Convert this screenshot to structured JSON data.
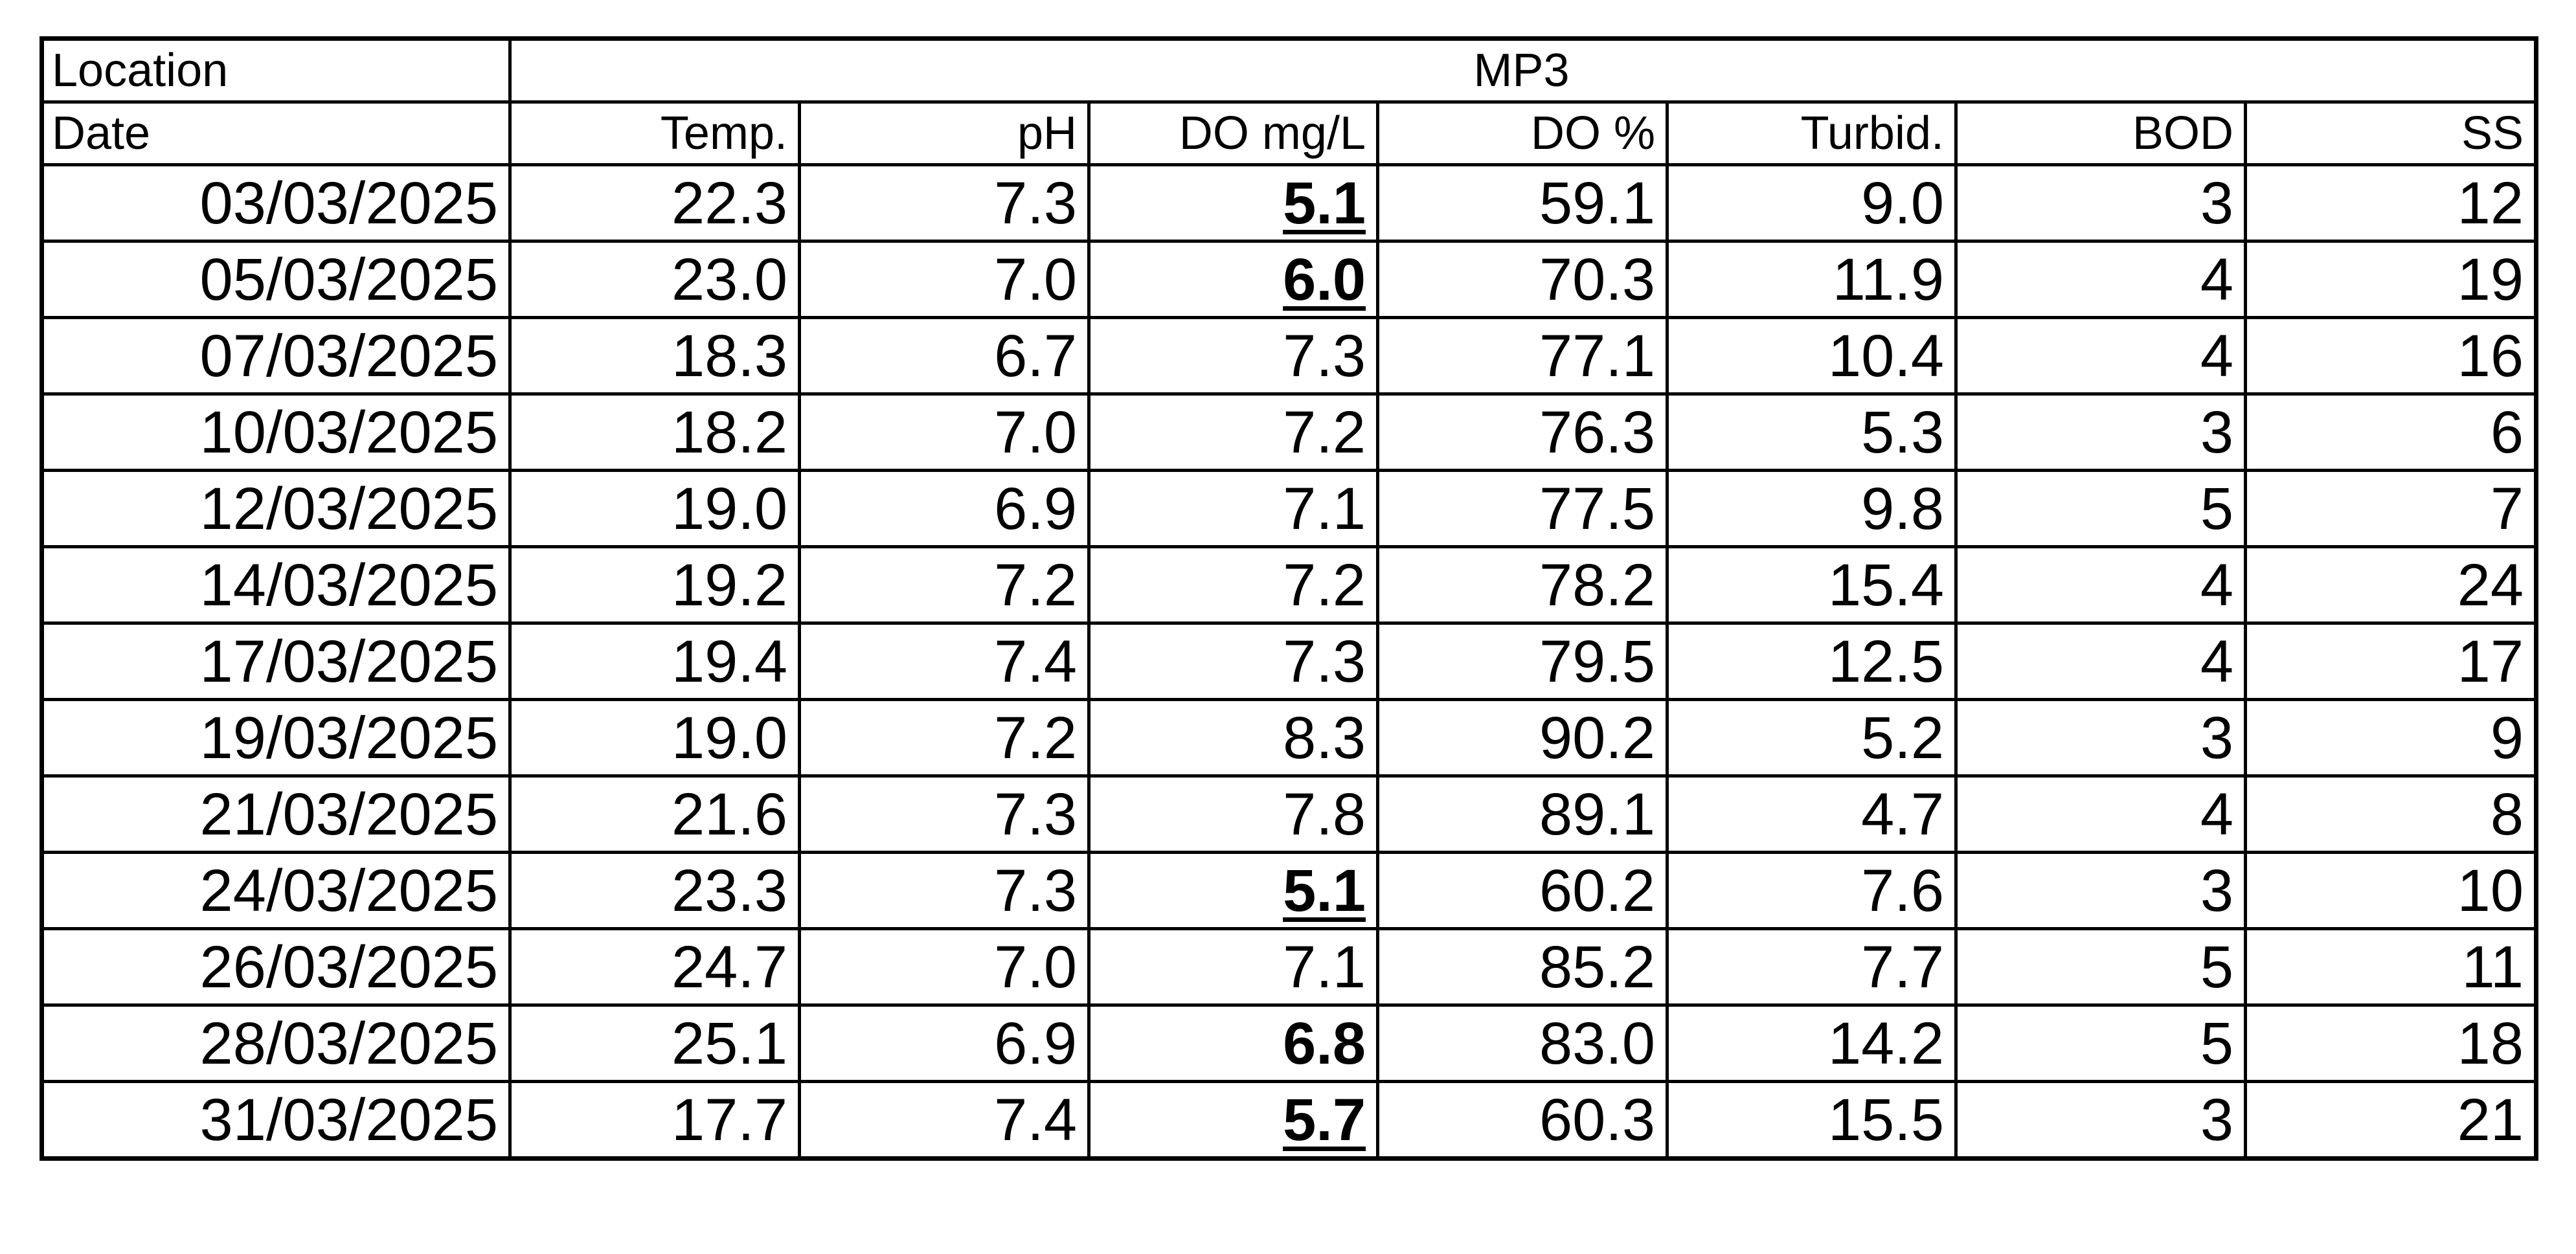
{
  "table": {
    "location_label": "Location",
    "location": "MP3",
    "date_label": "Date",
    "columns": [
      "Temp.",
      "pH",
      "DO mg/L",
      "DO %",
      "Turbid.",
      "BOD",
      "SS"
    ],
    "rows": [
      [
        "03/03/2025",
        "22.3",
        "7.3",
        "5.1",
        "59.1",
        "9.0",
        "3",
        "12"
      ],
      [
        "05/03/2025",
        "23.0",
        "7.0",
        "6.0",
        "70.3",
        "11.9",
        "4",
        "19"
      ],
      [
        "07/03/2025",
        "18.3",
        "6.7",
        "7.3",
        "77.1",
        "10.4",
        "4",
        "16"
      ],
      [
        "10/03/2025",
        "18.2",
        "7.0",
        "7.2",
        "76.3",
        "5.3",
        "3",
        "6"
      ],
      [
        "12/03/2025",
        "19.0",
        "6.9",
        "7.1",
        "77.5",
        "9.8",
        "5",
        "7"
      ],
      [
        "14/03/2025",
        "19.2",
        "7.2",
        "7.2",
        "78.2",
        "15.4",
        "4",
        "24"
      ],
      [
        "17/03/2025",
        "19.4",
        "7.4",
        "7.3",
        "79.5",
        "12.5",
        "4",
        "17"
      ],
      [
        "19/03/2025",
        "19.0",
        "7.2",
        "8.3",
        "90.2",
        "5.2",
        "3",
        "9"
      ],
      [
        "21/03/2025",
        "21.6",
        "7.3",
        "7.8",
        "89.1",
        "4.7",
        "4",
        "8"
      ],
      [
        "24/03/2025",
        "23.3",
        "7.3",
        "5.1",
        "60.2",
        "7.6",
        "3",
        "10"
      ],
      [
        "26/03/2025",
        "24.7",
        "7.0",
        "7.1",
        "85.2",
        "7.7",
        "5",
        "11"
      ],
      [
        "28/03/2025",
        "25.1",
        "6.9",
        "6.8",
        "83.0",
        "14.2",
        "5",
        "18"
      ],
      [
        "31/03/2025",
        "17.7",
        "7.4",
        "5.7",
        "60.3",
        "15.5",
        "3",
        "21"
      ]
    ],
    "emphasis": [
      {
        "row": 0,
        "col": 3,
        "style": "bold-underline"
      },
      {
        "row": 1,
        "col": 3,
        "style": "bold-underline"
      },
      {
        "row": 9,
        "col": 3,
        "style": "bold-underline"
      },
      {
        "row": 11,
        "col": 3,
        "style": "bold"
      },
      {
        "row": 12,
        "col": 3,
        "style": "bold-underline"
      }
    ]
  }
}
